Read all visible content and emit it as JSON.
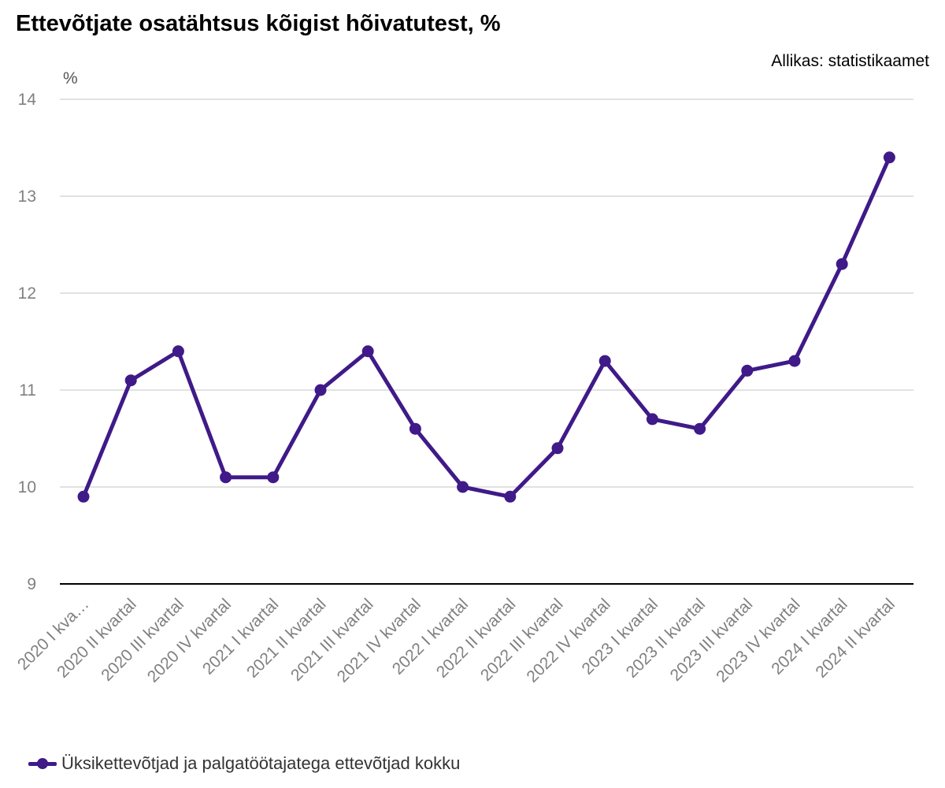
{
  "title": "Ettevõtjate osatähtsus kõigist hõivatutest, %",
  "source": "Allikas: statistikaamet",
  "chart_data": {
    "type": "line",
    "title": "Ettevõtjate osatähtsus kõigist hõivatutest, %",
    "ylabel": "%",
    "xlabel": "",
    "ylim": [
      9,
      14
    ],
    "yticks": [
      9,
      10,
      11,
      12,
      13,
      14
    ],
    "grid": true,
    "legend_position": "bottom-left",
    "categories": [
      "2020 I kva…",
      "2020 II kvartal",
      "2020 III kvartal",
      "2020 IV kvartal",
      "2021 I kvartal",
      "2021 II kvartal",
      "2021 III kvartal",
      "2021 IV kvartal",
      "2022 I kvartal",
      "2022 II kvartal",
      "2022 III kvartal",
      "2022 IV kvartal",
      "2023 I kvartal",
      "2023 II kvartal",
      "2023 III kvartal",
      "2023 IV kvartal",
      "2024 I kvartal",
      "2024 II kvartal"
    ],
    "series": [
      {
        "name": "Üksikettevõtjad ja palgatöötajatega ettevõtjad kokku",
        "color": "#3f1a88",
        "values": [
          9.9,
          11.1,
          11.4,
          10.1,
          10.1,
          11.0,
          11.4,
          10.6,
          10.0,
          9.9,
          10.4,
          11.3,
          10.7,
          10.6,
          11.2,
          11.3,
          12.3,
          13.4
        ]
      }
    ]
  }
}
